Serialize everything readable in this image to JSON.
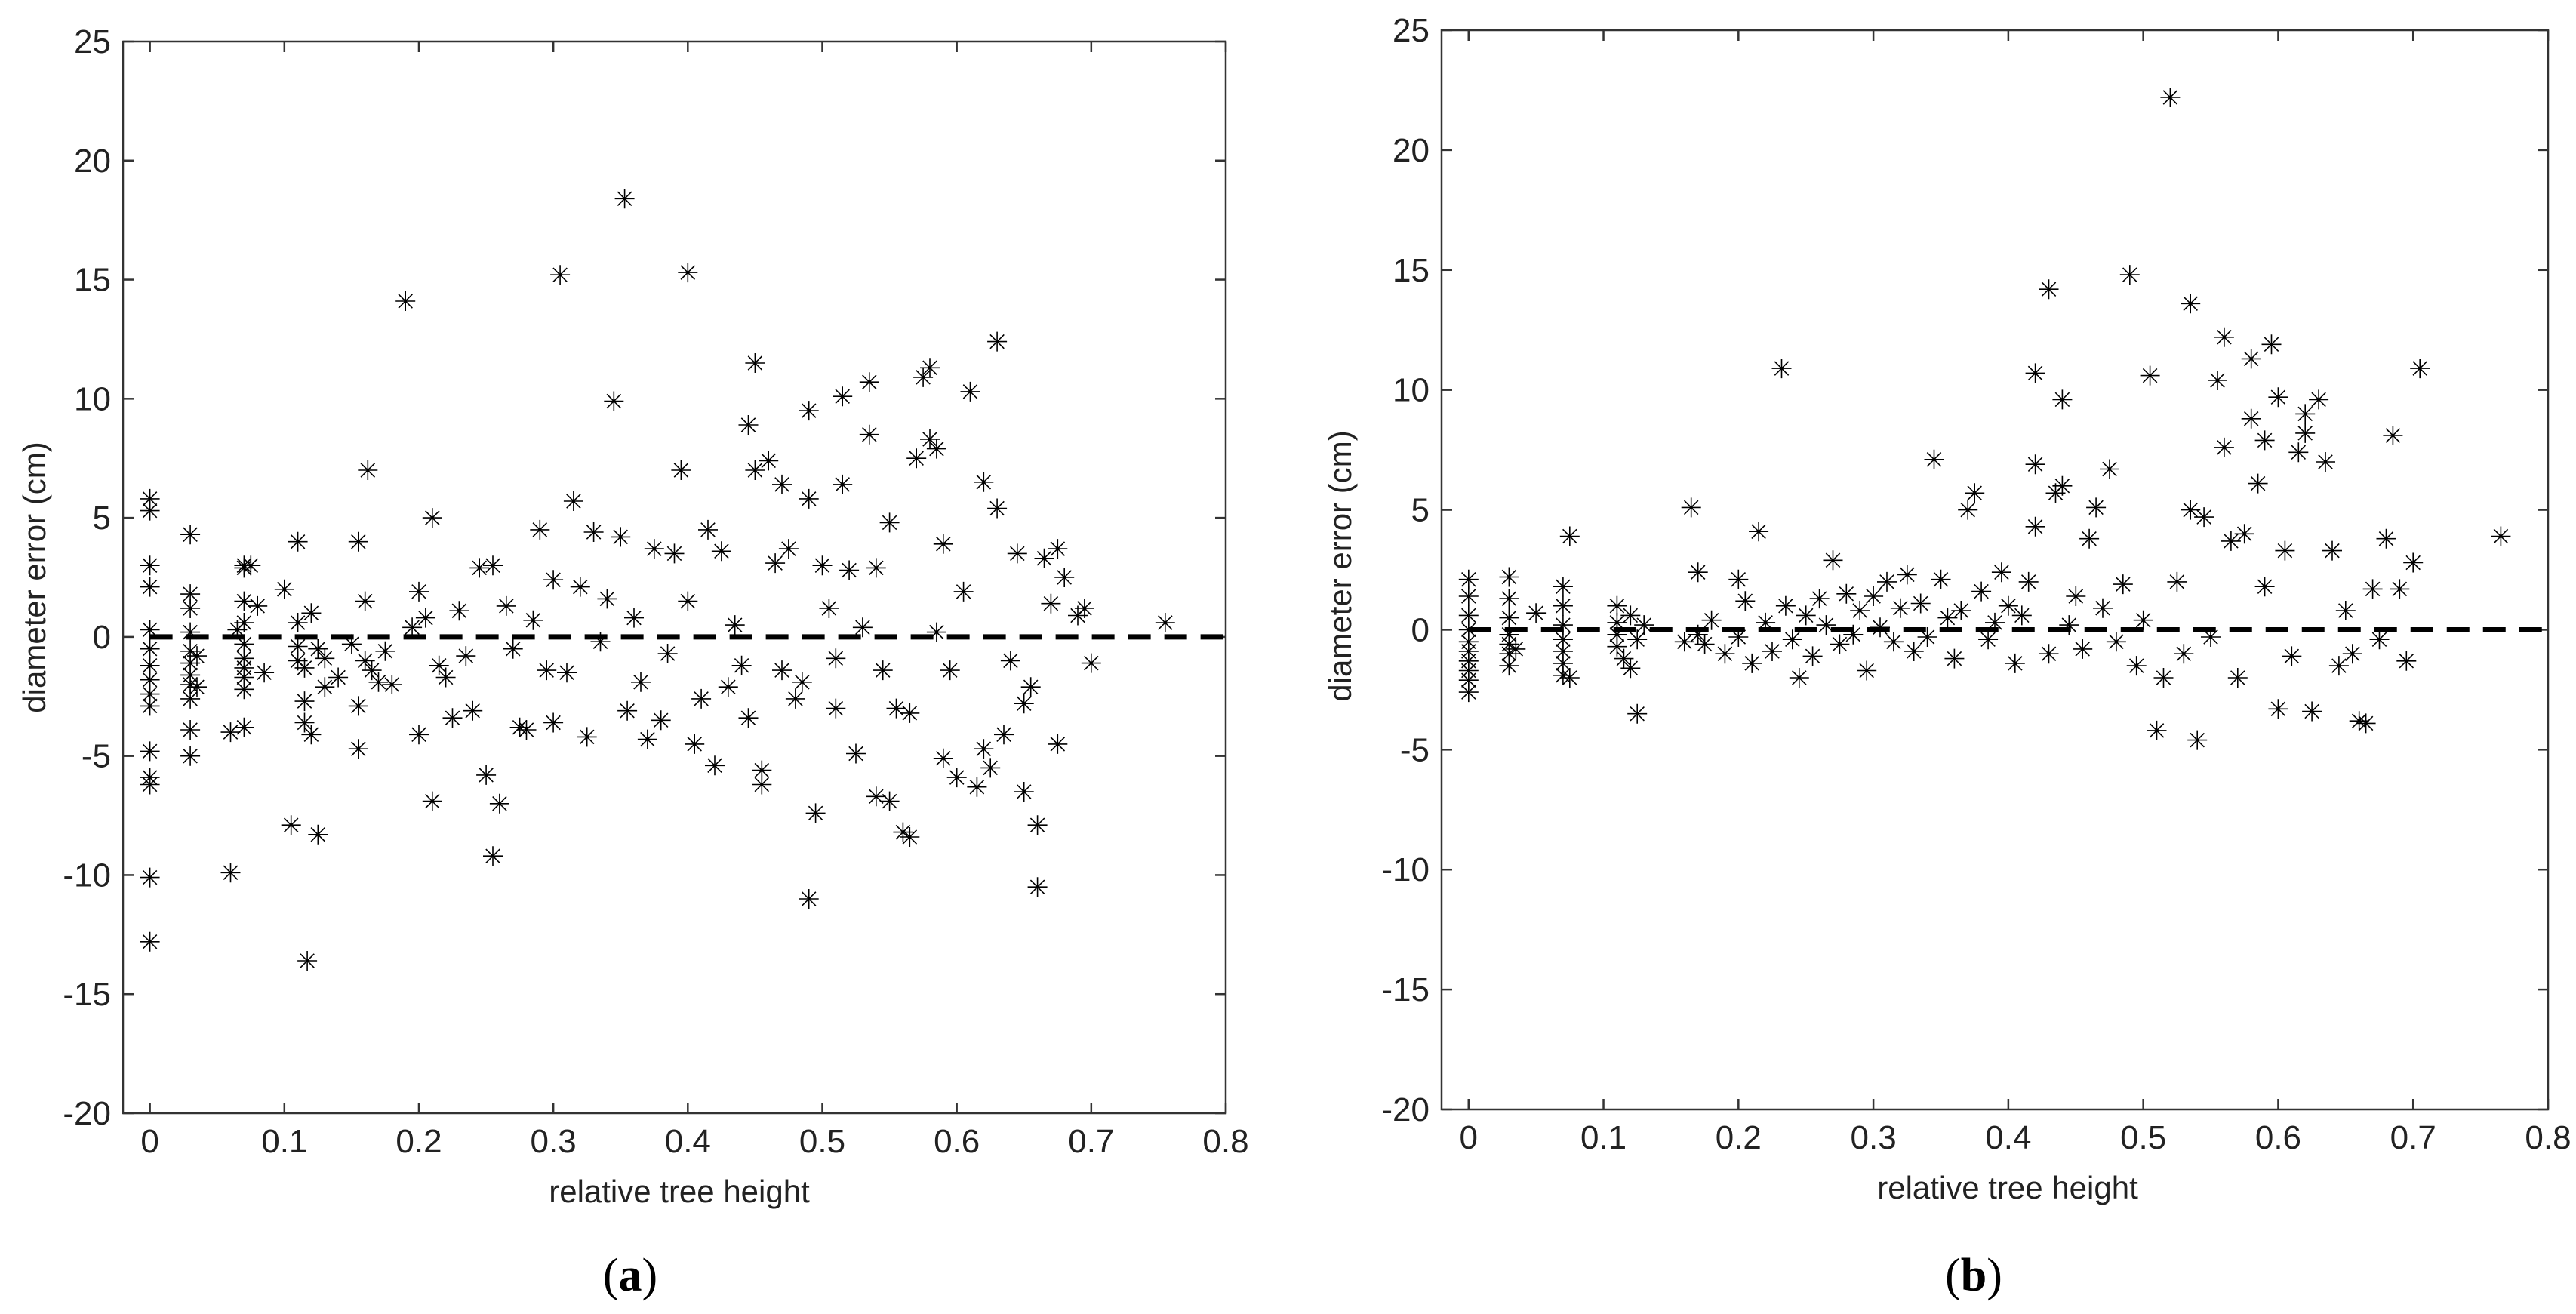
{
  "chart_data": [
    {
      "type": "scatter",
      "panel_label": "a",
      "xlabel": "relative tree height",
      "ylabel": "diameter error (cm)",
      "xlim": [
        -0.02,
        0.8
      ],
      "ylim": [
        -20,
        25
      ],
      "xticks": [
        "0",
        "0.1",
        "0.2",
        "0.3",
        "0.4",
        "0.5",
        "0.6",
        "0.7",
        "0.8"
      ],
      "yticks": [
        "-20",
        "-15",
        "-10",
        "-5",
        "0",
        "5",
        "10",
        "15",
        "20",
        "25"
      ],
      "marker": "asterisk",
      "reference_line": {
        "y": 0,
        "style": "dashed"
      },
      "points": [
        [
          0,
          5.8
        ],
        [
          0,
          5.3
        ],
        [
          0,
          3.0
        ],
        [
          0,
          2.1
        ],
        [
          0,
          0.3
        ],
        [
          0,
          -0.5
        ],
        [
          0,
          -1.2
        ],
        [
          0,
          -1.8
        ],
        [
          0,
          -2.4
        ],
        [
          0,
          -2.9
        ],
        [
          0,
          -4.8
        ],
        [
          0,
          -5.9
        ],
        [
          0,
          -6.2
        ],
        [
          0,
          -10.1
        ],
        [
          0,
          -12.8
        ],
        [
          0.03,
          4.3
        ],
        [
          0.03,
          1.8
        ],
        [
          0.03,
          1.2
        ],
        [
          0.03,
          0.2
        ],
        [
          0.03,
          -0.6
        ],
        [
          0.03,
          -1.1
        ],
        [
          0.03,
          -1.6
        ],
        [
          0.03,
          -2.0
        ],
        [
          0.03,
          -2.6
        ],
        [
          0.03,
          -3.9
        ],
        [
          0.03,
          -5.0
        ],
        [
          0.035,
          -0.8
        ],
        [
          0.035,
          -2.1
        ],
        [
          0.06,
          -9.9
        ],
        [
          0.06,
          -4.0
        ],
        [
          0.065,
          0.3
        ],
        [
          0.07,
          3.0
        ],
        [
          0.07,
          2.9
        ],
        [
          0.07,
          1.5
        ],
        [
          0.07,
          0.6
        ],
        [
          0.07,
          -0.3
        ],
        [
          0.07,
          -0.9
        ],
        [
          0.07,
          -1.3
        ],
        [
          0.07,
          -1.7
        ],
        [
          0.07,
          -2.2
        ],
        [
          0.07,
          -3.8
        ],
        [
          0.075,
          3.0
        ],
        [
          0.08,
          1.3
        ],
        [
          0.085,
          -1.5
        ],
        [
          0.1,
          2.0
        ],
        [
          0.105,
          -7.9
        ],
        [
          0.11,
          4.0
        ],
        [
          0.11,
          0.6
        ],
        [
          0.11,
          -0.4
        ],
        [
          0.11,
          -1.0
        ],
        [
          0.115,
          -1.3
        ],
        [
          0.115,
          -2.7
        ],
        [
          0.115,
          -3.6
        ],
        [
          0.117,
          -13.6
        ],
        [
          0.12,
          -4.1
        ],
        [
          0.12,
          1.0
        ],
        [
          0.125,
          -8.3
        ],
        [
          0.125,
          -0.5
        ],
        [
          0.13,
          -0.9
        ],
        [
          0.13,
          -2.1
        ],
        [
          0.14,
          -1.7
        ],
        [
          0.15,
          -0.3
        ],
        [
          0.155,
          4.0
        ],
        [
          0.155,
          -2.9
        ],
        [
          0.155,
          -4.7
        ],
        [
          0.16,
          1.5
        ],
        [
          0.16,
          -1.0
        ],
        [
          0.162,
          7.0
        ],
        [
          0.165,
          -1.4
        ],
        [
          0.17,
          -1.9
        ],
        [
          0.175,
          -0.6
        ],
        [
          0.18,
          -2.0
        ],
        [
          0.19,
          14.1
        ],
        [
          0.195,
          0.4
        ],
        [
          0.2,
          1.9
        ],
        [
          0.2,
          -4.1
        ],
        [
          0.205,
          0.8
        ],
        [
          0.21,
          5.0
        ],
        [
          0.21,
          -6.9
        ],
        [
          0.215,
          -1.2
        ],
        [
          0.22,
          -1.7
        ],
        [
          0.225,
          -3.4
        ],
        [
          0.23,
          1.1
        ],
        [
          0.235,
          -0.8
        ],
        [
          0.24,
          -3.1
        ],
        [
          0.245,
          2.9
        ],
        [
          0.25,
          -5.8
        ],
        [
          0.255,
          -9.2
        ],
        [
          0.255,
          3.0
        ],
        [
          0.26,
          -7.0
        ],
        [
          0.265,
          1.3
        ],
        [
          0.27,
          -0.5
        ],
        [
          0.275,
          -3.8
        ],
        [
          0.28,
          -3.9
        ],
        [
          0.285,
          0.7
        ],
        [
          0.29,
          4.5
        ],
        [
          0.295,
          -1.4
        ],
        [
          0.3,
          2.4
        ],
        [
          0.3,
          -3.6
        ],
        [
          0.305,
          15.2
        ],
        [
          0.31,
          -1.5
        ],
        [
          0.315,
          5.7
        ],
        [
          0.32,
          2.1
        ],
        [
          0.325,
          -4.2
        ],
        [
          0.33,
          4.4
        ],
        [
          0.335,
          -0.2
        ],
        [
          0.34,
          1.6
        ],
        [
          0.345,
          9.9
        ],
        [
          0.35,
          4.2
        ],
        [
          0.353,
          18.4
        ],
        [
          0.355,
          -3.1
        ],
        [
          0.36,
          0.8
        ],
        [
          0.365,
          -1.9
        ],
        [
          0.37,
          -4.3
        ],
        [
          0.375,
          3.7
        ],
        [
          0.38,
          -3.5
        ],
        [
          0.385,
          -0.7
        ],
        [
          0.39,
          3.5
        ],
        [
          0.395,
          7.0
        ],
        [
          0.4,
          15.3
        ],
        [
          0.4,
          1.5
        ],
        [
          0.405,
          -4.5
        ],
        [
          0.41,
          -2.6
        ],
        [
          0.415,
          4.5
        ],
        [
          0.42,
          -5.4
        ],
        [
          0.425,
          3.6
        ],
        [
          0.43,
          -2.1
        ],
        [
          0.435,
          0.5
        ],
        [
          0.44,
          -1.2
        ],
        [
          0.445,
          8.9
        ],
        [
          0.445,
          -3.4
        ],
        [
          0.45,
          11.5
        ],
        [
          0.45,
          7.0
        ],
        [
          0.455,
          -5.6
        ],
        [
          0.455,
          -6.2
        ],
        [
          0.46,
          7.4
        ],
        [
          0.465,
          3.1
        ],
        [
          0.47,
          6.4
        ],
        [
          0.47,
          -1.4
        ],
        [
          0.475,
          3.7
        ],
        [
          0.48,
          -2.6
        ],
        [
          0.485,
          -1.9
        ],
        [
          0.49,
          9.5
        ],
        [
          0.49,
          5.8
        ],
        [
          0.49,
          -11.0
        ],
        [
          0.495,
          -7.4
        ],
        [
          0.5,
          3.0
        ],
        [
          0.505,
          1.2
        ],
        [
          0.51,
          -3.0
        ],
        [
          0.51,
          -0.9
        ],
        [
          0.515,
          6.4
        ],
        [
          0.515,
          10.1
        ],
        [
          0.52,
          2.8
        ],
        [
          0.525,
          -4.9
        ],
        [
          0.53,
          0.4
        ],
        [
          0.535,
          10.7
        ],
        [
          0.535,
          8.5
        ],
        [
          0.54,
          -6.7
        ],
        [
          0.54,
          2.9
        ],
        [
          0.545,
          -1.4
        ],
        [
          0.55,
          4.8
        ],
        [
          0.55,
          -6.9
        ],
        [
          0.555,
          -3.0
        ],
        [
          0.56,
          -8.2
        ],
        [
          0.565,
          -3.2
        ],
        [
          0.565,
          -8.4
        ],
        [
          0.57,
          7.5
        ],
        [
          0.575,
          10.9
        ],
        [
          0.58,
          11.3
        ],
        [
          0.58,
          8.3
        ],
        [
          0.585,
          7.9
        ],
        [
          0.585,
          0.2
        ],
        [
          0.59,
          3.9
        ],
        [
          0.59,
          -5.1
        ],
        [
          0.595,
          -1.4
        ],
        [
          0.6,
          -5.9
        ],
        [
          0.605,
          1.9
        ],
        [
          0.61,
          10.3
        ],
        [
          0.615,
          -6.3
        ],
        [
          0.62,
          6.5
        ],
        [
          0.62,
          -4.7
        ],
        [
          0.625,
          -5.5
        ],
        [
          0.63,
          12.4
        ],
        [
          0.63,
          5.4
        ],
        [
          0.635,
          -4.1
        ],
        [
          0.64,
          -1.0
        ],
        [
          0.645,
          3.5
        ],
        [
          0.65,
          -6.5
        ],
        [
          0.65,
          -2.8
        ],
        [
          0.655,
          -2.1
        ],
        [
          0.66,
          -7.9
        ],
        [
          0.66,
          -10.5
        ],
        [
          0.665,
          3.3
        ],
        [
          0.67,
          1.4
        ],
        [
          0.675,
          -4.5
        ],
        [
          0.675,
          3.7
        ],
        [
          0.68,
          2.5
        ],
        [
          0.69,
          0.9
        ],
        [
          0.695,
          1.2
        ],
        [
          0.7,
          -1.1
        ],
        [
          0.755,
          0.6
        ]
      ]
    },
    {
      "type": "scatter",
      "panel_label": "b",
      "xlabel": "relative tree height",
      "ylabel": "diameter error (cm)",
      "xlim": [
        -0.02,
        0.8
      ],
      "ylim": [
        -20,
        25
      ],
      "xticks": [
        "0",
        "0.1",
        "0.2",
        "0.3",
        "0.4",
        "0.5",
        "0.6",
        "0.7",
        "0.8"
      ],
      "yticks": [
        "-20",
        "-15",
        "-10",
        "-5",
        "0",
        "5",
        "10",
        "15",
        "20",
        "25"
      ],
      "marker": "asterisk",
      "reference_line": {
        "y": 0,
        "style": "dashed"
      },
      "points": [
        [
          0,
          2.1
        ],
        [
          0,
          1.4
        ],
        [
          0,
          0.6
        ],
        [
          0,
          0.0
        ],
        [
          0,
          -0.5
        ],
        [
          0,
          -0.9
        ],
        [
          0,
          -1.3
        ],
        [
          0,
          -1.7
        ],
        [
          0,
          -2.1
        ],
        [
          0,
          -2.6
        ],
        [
          0.03,
          2.2
        ],
        [
          0.03,
          1.3
        ],
        [
          0.03,
          0.5
        ],
        [
          0.03,
          -0.2
        ],
        [
          0.03,
          -0.6
        ],
        [
          0.03,
          -1.0
        ],
        [
          0.03,
          -1.5
        ],
        [
          0.035,
          -0.8
        ],
        [
          0.05,
          0.7
        ],
        [
          0.07,
          1.8
        ],
        [
          0.07,
          1.0
        ],
        [
          0.07,
          0.2
        ],
        [
          0.07,
          -0.4
        ],
        [
          0.07,
          -0.9
        ],
        [
          0.07,
          -1.4
        ],
        [
          0.07,
          -1.9
        ],
        [
          0.075,
          -2.0
        ],
        [
          0.075,
          3.9
        ],
        [
          0.11,
          1.0
        ],
        [
          0.11,
          0.3
        ],
        [
          0.11,
          -0.2
        ],
        [
          0.11,
          -0.7
        ],
        [
          0.115,
          -1.2
        ],
        [
          0.12,
          -1.6
        ],
        [
          0.12,
          0.6
        ],
        [
          0.125,
          -3.5
        ],
        [
          0.125,
          -0.4
        ],
        [
          0.13,
          0.2
        ],
        [
          0.16,
          -0.5
        ],
        [
          0.165,
          5.1
        ],
        [
          0.17,
          2.4
        ],
        [
          0.17,
          -0.2
        ],
        [
          0.175,
          -0.6
        ],
        [
          0.18,
          0.4
        ],
        [
          0.19,
          -1.0
        ],
        [
          0.2,
          2.1
        ],
        [
          0.2,
          -0.3
        ],
        [
          0.205,
          1.2
        ],
        [
          0.21,
          -1.4
        ],
        [
          0.215,
          4.1
        ],
        [
          0.22,
          0.3
        ],
        [
          0.225,
          -0.9
        ],
        [
          0.232,
          10.9
        ],
        [
          0.235,
          1.0
        ],
        [
          0.24,
          -0.4
        ],
        [
          0.245,
          -2.0
        ],
        [
          0.25,
          0.6
        ],
        [
          0.255,
          -1.1
        ],
        [
          0.26,
          1.3
        ],
        [
          0.265,
          0.2
        ],
        [
          0.27,
          2.9
        ],
        [
          0.275,
          -0.6
        ],
        [
          0.28,
          1.5
        ],
        [
          0.285,
          -0.2
        ],
        [
          0.29,
          0.8
        ],
        [
          0.295,
          -1.7
        ],
        [
          0.3,
          1.4
        ],
        [
          0.305,
          0.1
        ],
        [
          0.31,
          2.0
        ],
        [
          0.315,
          -0.5
        ],
        [
          0.32,
          0.9
        ],
        [
          0.325,
          2.3
        ],
        [
          0.33,
          -0.9
        ],
        [
          0.335,
          1.1
        ],
        [
          0.34,
          -0.3
        ],
        [
          0.345,
          7.1
        ],
        [
          0.35,
          2.1
        ],
        [
          0.355,
          0.5
        ],
        [
          0.36,
          -1.2
        ],
        [
          0.365,
          0.8
        ],
        [
          0.37,
          5.0
        ],
        [
          0.375,
          5.7
        ],
        [
          0.38,
          1.6
        ],
        [
          0.385,
          -0.4
        ],
        [
          0.39,
          0.3
        ],
        [
          0.395,
          2.4
        ],
        [
          0.4,
          1.0
        ],
        [
          0.405,
          -1.4
        ],
        [
          0.41,
          0.6
        ],
        [
          0.415,
          2.0
        ],
        [
          0.42,
          10.7
        ],
        [
          0.42,
          6.9
        ],
        [
          0.42,
          4.3
        ],
        [
          0.43,
          14.2
        ],
        [
          0.43,
          -1.0
        ],
        [
          0.435,
          5.7
        ],
        [
          0.44,
          6.0
        ],
        [
          0.44,
          9.6
        ],
        [
          0.445,
          0.2
        ],
        [
          0.45,
          1.4
        ],
        [
          0.455,
          -0.8
        ],
        [
          0.46,
          3.8
        ],
        [
          0.465,
          5.1
        ],
        [
          0.47,
          0.9
        ],
        [
          0.475,
          6.7
        ],
        [
          0.48,
          -0.5
        ],
        [
          0.485,
          1.9
        ],
        [
          0.49,
          14.8
        ],
        [
          0.495,
          -1.5
        ],
        [
          0.5,
          0.4
        ],
        [
          0.505,
          10.6
        ],
        [
          0.51,
          -4.2
        ],
        [
          0.515,
          -2.0
        ],
        [
          0.52,
          22.2
        ],
        [
          0.525,
          2.0
        ],
        [
          0.53,
          -1.0
        ],
        [
          0.535,
          13.6
        ],
        [
          0.535,
          5.0
        ],
        [
          0.54,
          -4.6
        ],
        [
          0.545,
          4.7
        ],
        [
          0.55,
          -0.3
        ],
        [
          0.555,
          10.4
        ],
        [
          0.56,
          12.2
        ],
        [
          0.56,
          7.6
        ],
        [
          0.565,
          3.7
        ],
        [
          0.57,
          -2.0
        ],
        [
          0.575,
          4.0
        ],
        [
          0.58,
          8.8
        ],
        [
          0.58,
          11.3
        ],
        [
          0.585,
          6.1
        ],
        [
          0.59,
          7.9
        ],
        [
          0.59,
          1.8
        ],
        [
          0.595,
          11.9
        ],
        [
          0.6,
          9.7
        ],
        [
          0.6,
          -3.3
        ],
        [
          0.605,
          3.3
        ],
        [
          0.61,
          -1.1
        ],
        [
          0.615,
          7.4
        ],
        [
          0.62,
          8.2
        ],
        [
          0.62,
          9.0
        ],
        [
          0.625,
          -3.4
        ],
        [
          0.63,
          9.6
        ],
        [
          0.635,
          7.0
        ],
        [
          0.64,
          3.3
        ],
        [
          0.645,
          -1.5
        ],
        [
          0.65,
          0.8
        ],
        [
          0.655,
          -1.0
        ],
        [
          0.66,
          -3.8
        ],
        [
          0.665,
          -3.9
        ],
        [
          0.67,
          1.7
        ],
        [
          0.675,
          -0.4
        ],
        [
          0.68,
          3.8
        ],
        [
          0.685,
          8.1
        ],
        [
          0.69,
          1.7
        ],
        [
          0.695,
          -1.3
        ],
        [
          0.7,
          2.8
        ],
        [
          0.705,
          10.9
        ],
        [
          0.765,
          3.9
        ]
      ]
    }
  ]
}
